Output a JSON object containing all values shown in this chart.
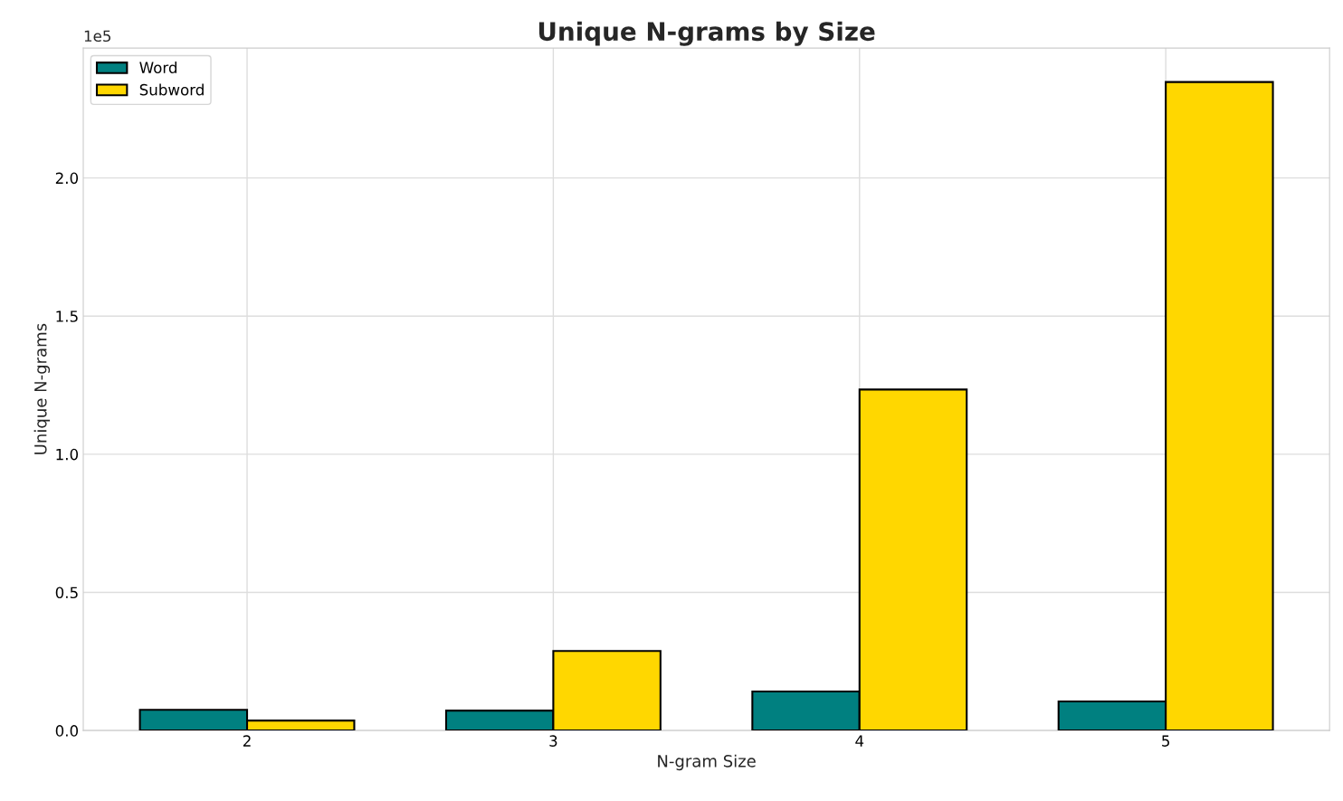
{
  "chart_data": {
    "type": "bar",
    "title": "Unique N-grams by Size",
    "xlabel": "N-gram Size",
    "ylabel": "Unique N-grams",
    "categories": [
      "2",
      "3",
      "4",
      "5"
    ],
    "series": [
      {
        "name": "Word",
        "color": "#008080",
        "values": [
          0.075,
          0.072,
          0.141,
          0.105
        ]
      },
      {
        "name": "Subword",
        "color": "#ffd700",
        "values": [
          0.036,
          0.288,
          1.234,
          2.347
        ]
      }
    ],
    "ylim": [
      0,
      2.47
    ],
    "yticks": [
      {
        "value": 0,
        "label": "0.0"
      },
      0.5,
      {
        "value": 1,
        "label": "1.0"
      },
      1.5,
      {
        "value": 2,
        "label": "2.0"
      }
    ],
    "annotations": [
      "1e5"
    ],
    "grid": true,
    "legend": "top left"
  }
}
